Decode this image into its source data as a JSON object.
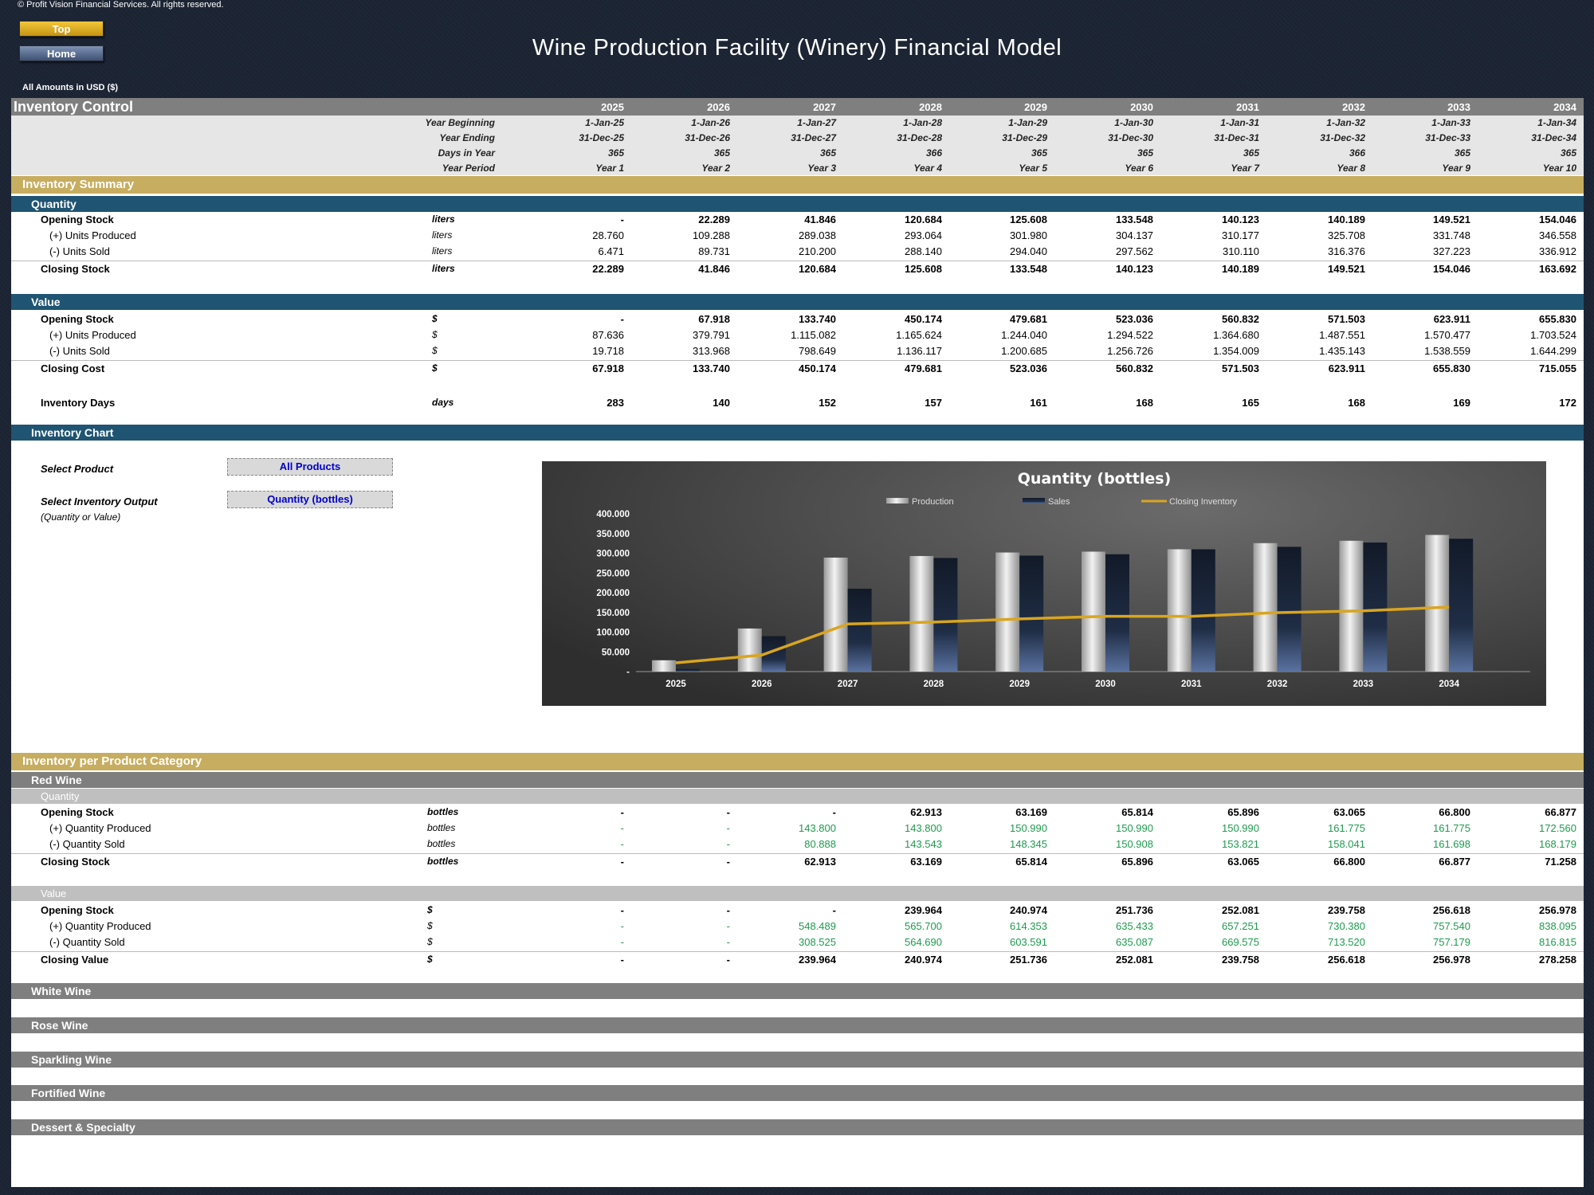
{
  "app": {
    "copyright": "© Profit Vision Financial Services. All rights reserved.",
    "title": "Wine Production Facility (Winery) Financial Model",
    "top_button": "Top",
    "home_button": "Home",
    "amounts_label": "All Amounts in  USD ($)"
  },
  "header": {
    "section_title": "Inventory Control",
    "years": [
      "2025",
      "2026",
      "2027",
      "2028",
      "2029",
      "2030",
      "2031",
      "2032",
      "2033",
      "2034"
    ],
    "rows": [
      {
        "label": "Year Beginning",
        "values": [
          "1-Jan-25",
          "1-Jan-26",
          "1-Jan-27",
          "1-Jan-28",
          "1-Jan-29",
          "1-Jan-30",
          "1-Jan-31",
          "1-Jan-32",
          "1-Jan-33",
          "1-Jan-34"
        ]
      },
      {
        "label": "Year Ending",
        "values": [
          "31-Dec-25",
          "31-Dec-26",
          "31-Dec-27",
          "31-Dec-28",
          "31-Dec-29",
          "31-Dec-30",
          "31-Dec-31",
          "31-Dec-32",
          "31-Dec-33",
          "31-Dec-34"
        ]
      },
      {
        "label": "Days in Year",
        "values": [
          "365",
          "365",
          "365",
          "366",
          "365",
          "365",
          "365",
          "366",
          "365",
          "365"
        ]
      },
      {
        "label": "Year Period",
        "values": [
          "Year 1",
          "Year 2",
          "Year 3",
          "Year 4",
          "Year 5",
          "Year 6",
          "Year 7",
          "Year 8",
          "Year 9",
          "Year 10"
        ]
      }
    ]
  },
  "summary": {
    "title": "Inventory Summary",
    "quantity_title": "Quantity",
    "quantity_rows": [
      {
        "label": "Opening Stock",
        "unit": "liters",
        "bold": true,
        "indent": false,
        "values": [
          "-",
          "22.289",
          "41.846",
          "120.684",
          "125.608",
          "133.548",
          "140.123",
          "140.189",
          "149.521",
          "154.046"
        ]
      },
      {
        "label": "(+) Units Produced",
        "unit": "liters",
        "bold": false,
        "indent": true,
        "values": [
          "28.760",
          "109.288",
          "289.038",
          "293.064",
          "301.980",
          "304.137",
          "310.177",
          "325.708",
          "331.748",
          "346.558"
        ]
      },
      {
        "label": "(-) Units Sold",
        "unit": "liters",
        "bold": false,
        "indent": true,
        "values": [
          "6.471",
          "89.731",
          "210.200",
          "288.140",
          "294.040",
          "297.562",
          "310.110",
          "316.376",
          "327.223",
          "336.912"
        ]
      },
      {
        "label": "Closing Stock",
        "unit": "liters",
        "bold": true,
        "indent": false,
        "values": [
          "22.289",
          "41.846",
          "120.684",
          "125.608",
          "133.548",
          "140.123",
          "140.189",
          "149.521",
          "154.046",
          "163.692"
        ]
      }
    ],
    "value_title": "Value",
    "value_rows": [
      {
        "label": "Opening Stock",
        "unit": "$",
        "bold": true,
        "indent": false,
        "values": [
          "-",
          "67.918",
          "133.740",
          "450.174",
          "479.681",
          "523.036",
          "560.832",
          "571.503",
          "623.911",
          "655.830"
        ]
      },
      {
        "label": "(+) Units Produced",
        "unit": "$",
        "bold": false,
        "indent": true,
        "values": [
          "87.636",
          "379.791",
          "1.115.082",
          "1.165.624",
          "1.244.040",
          "1.294.522",
          "1.364.680",
          "1.487.551",
          "1.570.477",
          "1.703.524"
        ]
      },
      {
        "label": "(-) Units Sold",
        "unit": "$",
        "bold": false,
        "indent": true,
        "values": [
          "19.718",
          "313.968",
          "798.649",
          "1.136.117",
          "1.200.685",
          "1.256.726",
          "1.354.009",
          "1.435.143",
          "1.538.559",
          "1.644.299"
        ]
      },
      {
        "label": "Closing Cost",
        "unit": "$",
        "bold": true,
        "indent": false,
        "values": [
          "67.918",
          "133.740",
          "450.174",
          "479.681",
          "523.036",
          "560.832",
          "571.503",
          "623.911",
          "655.830",
          "715.055"
        ]
      }
    ],
    "days_row": {
      "label": "Inventory Days",
      "unit": "days",
      "values": [
        "283",
        "140",
        "152",
        "157",
        "161",
        "168",
        "165",
        "168",
        "169",
        "172"
      ]
    }
  },
  "inventory_chart": {
    "title": "Inventory Chart",
    "select_product_label": "Select Product",
    "select_product_value": "All Products",
    "select_output_label": "Select Inventory Output",
    "select_output_value": "Quantity (bottles)",
    "output_hint": "(Quantity or Value)"
  },
  "chart_data": {
    "type": "bar",
    "title": "Quantity (bottles)",
    "categories": [
      "2025",
      "2026",
      "2027",
      "2028",
      "2029",
      "2030",
      "2031",
      "2032",
      "2033",
      "2034"
    ],
    "series": [
      {
        "name": "Production",
        "kind": "bar",
        "values": [
          28760,
          109288,
          289038,
          293064,
          301980,
          304137,
          310177,
          325708,
          331748,
          346558
        ]
      },
      {
        "name": "Sales",
        "kind": "bar",
        "values": [
          6471,
          89731,
          210200,
          288140,
          294040,
          297562,
          310110,
          316376,
          327223,
          336912
        ]
      },
      {
        "name": "Closing Inventory",
        "kind": "line",
        "values": [
          22289,
          41846,
          120684,
          125608,
          133548,
          140123,
          140189,
          149521,
          154046,
          163692
        ]
      }
    ],
    "ylim": [
      0,
      400000
    ],
    "yticks": [
      "-",
      "50.000",
      "100.000",
      "150.000",
      "200.000",
      "250.000",
      "300.000",
      "350.000",
      "400.000"
    ],
    "legend_position": "top",
    "colors": {
      "production": "#c9c9c9",
      "sales": "#1c2535",
      "closing": "#d9a520"
    }
  },
  "per_product": {
    "title": "Inventory per Product Category",
    "red_wine": {
      "title": "Red Wine",
      "quantity_title": "Quantity",
      "quantity_rows": [
        {
          "label": "Opening Stock",
          "unit": "bottles",
          "bold": true,
          "indent": false,
          "green": false,
          "values": [
            "-",
            "-",
            "-",
            "62.913",
            "63.169",
            "65.814",
            "65.896",
            "63.065",
            "66.800",
            "66.877"
          ]
        },
        {
          "label": "(+) Quantity Produced",
          "unit": "bottles",
          "bold": false,
          "indent": true,
          "green": true,
          "values": [
            "-",
            "-",
            "143.800",
            "143.800",
            "150.990",
            "150.990",
            "150.990",
            "161.775",
            "161.775",
            "172.560"
          ]
        },
        {
          "label": "(-) Quantity Sold",
          "unit": "bottles",
          "bold": false,
          "indent": true,
          "green": true,
          "values": [
            "-",
            "-",
            "80.888",
            "143.543",
            "148.345",
            "150.908",
            "153.821",
            "158.041",
            "161.698",
            "168.179"
          ]
        },
        {
          "label": "Closing Stock",
          "unit": "bottles",
          "bold": true,
          "indent": false,
          "green": false,
          "values": [
            "-",
            "-",
            "62.913",
            "63.169",
            "65.814",
            "65.896",
            "63.065",
            "66.800",
            "66.877",
            "71.258"
          ]
        }
      ],
      "value_title": "Value",
      "value_rows": [
        {
          "label": "Opening Stock",
          "unit": "$",
          "bold": true,
          "indent": false,
          "green": false,
          "values": [
            "-",
            "-",
            "-",
            "239.964",
            "240.974",
            "251.736",
            "252.081",
            "239.758",
            "256.618",
            "256.978"
          ]
        },
        {
          "label": "(+) Quantity Produced",
          "unit": "$",
          "bold": false,
          "indent": true,
          "green": true,
          "values": [
            "-",
            "-",
            "548.489",
            "565.700",
            "614.353",
            "635.433",
            "657.251",
            "730.380",
            "757.540",
            "838.095"
          ]
        },
        {
          "label": "(-) Quantity Sold",
          "unit": "$",
          "bold": false,
          "indent": true,
          "green": true,
          "values": [
            "-",
            "-",
            "308.525",
            "564.690",
            "603.591",
            "635.087",
            "669.575",
            "713.520",
            "757.179",
            "816.815"
          ]
        },
        {
          "label": "Closing Value",
          "unit": "$",
          "bold": true,
          "indent": false,
          "green": false,
          "values": [
            "-",
            "-",
            "239.964",
            "240.974",
            "251.736",
            "252.081",
            "239.758",
            "256.618",
            "256.978",
            "278.258"
          ]
        }
      ]
    },
    "other_categories": [
      "White Wine",
      "Rose Wine",
      "Sparkling Wine",
      "Fortified Wine",
      "Dessert & Specialty"
    ]
  }
}
